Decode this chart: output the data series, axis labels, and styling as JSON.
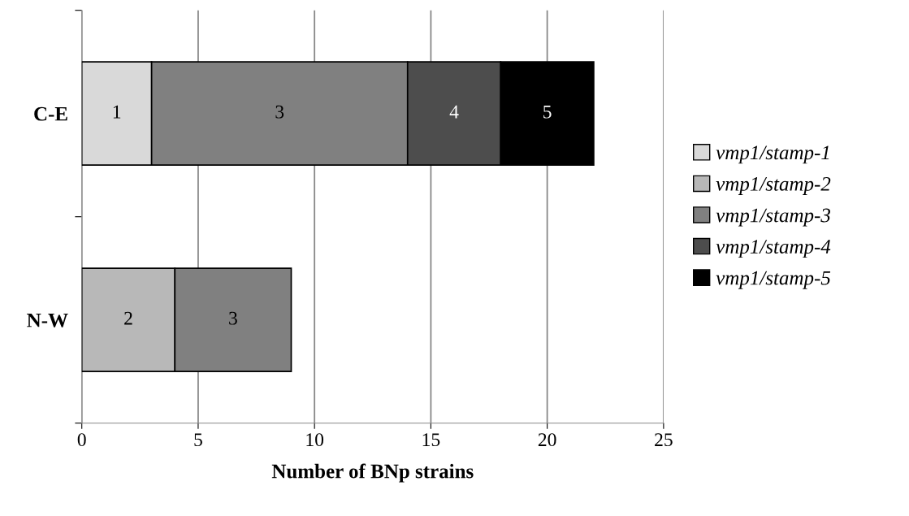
{
  "chart_data": {
    "type": "bar",
    "orientation": "horizontal",
    "stacked": true,
    "categories": [
      "C-E",
      "N-W"
    ],
    "xlabel": "Number of BNp strains",
    "xlim": [
      0,
      25
    ],
    "xticks": [
      0,
      5,
      10,
      15,
      20,
      25
    ],
    "grid": "x",
    "legend": "right",
    "series": [
      {
        "name": "vmp1/stamp-1",
        "color": "#d9d9d9",
        "values": [
          3,
          null
        ]
      },
      {
        "name": "vmp1/stamp-2",
        "color": "#b8b8b8",
        "values": [
          null,
          4
        ]
      },
      {
        "name": "vmp1/stamp-3",
        "color": "#808080",
        "values": [
          11,
          5
        ]
      },
      {
        "name": "vmp1/stamp-4",
        "color": "#4d4d4d",
        "values": [
          4,
          null
        ]
      },
      {
        "name": "vmp1/stamp-5",
        "color": "#000000",
        "values": [
          4,
          null
        ]
      }
    ],
    "annotations": [
      "1",
      "3",
      "4",
      "5",
      "2",
      "3"
    ]
  }
}
